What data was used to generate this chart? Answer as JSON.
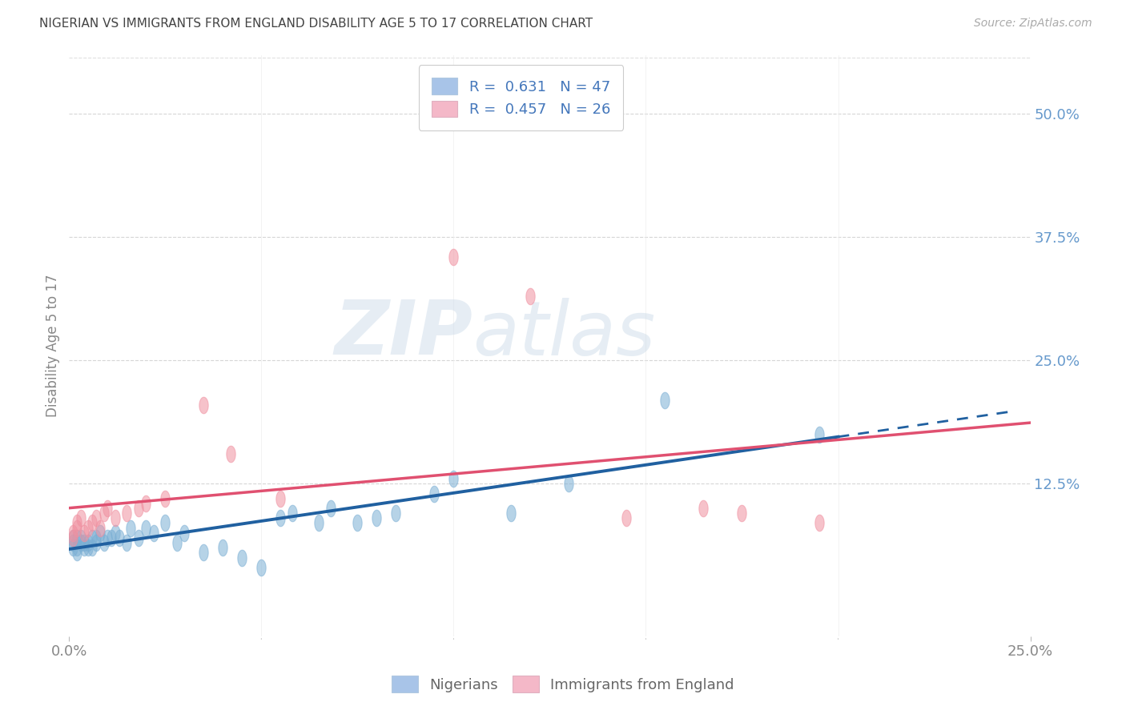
{
  "title": "NIGERIAN VS IMMIGRANTS FROM ENGLAND DISABILITY AGE 5 TO 17 CORRELATION CHART",
  "source": "Source: ZipAtlas.com",
  "ylabel": "Disability Age 5 to 17",
  "watermark_zip": "ZIP",
  "watermark_atlas": "atlas",
  "legend_line1": "R =  0.631   N = 47",
  "legend_line2": "R =  0.457   N = 26",
  "legend_blue_color": "#a8c4e8",
  "legend_pink_color": "#f4b8c8",
  "nigerians_x": [
    0.001,
    0.001,
    0.001,
    0.002,
    0.002,
    0.002,
    0.003,
    0.003,
    0.004,
    0.004,
    0.005,
    0.005,
    0.006,
    0.006,
    0.007,
    0.007,
    0.008,
    0.009,
    0.01,
    0.011,
    0.012,
    0.013,
    0.015,
    0.016,
    0.018,
    0.02,
    0.022,
    0.025,
    0.028,
    0.03,
    0.035,
    0.04,
    0.045,
    0.05,
    0.055,
    0.058,
    0.065,
    0.068,
    0.075,
    0.08,
    0.085,
    0.095,
    0.1,
    0.115,
    0.13,
    0.155,
    0.195
  ],
  "nigerians_y": [
    0.06,
    0.065,
    0.07,
    0.055,
    0.06,
    0.07,
    0.065,
    0.07,
    0.06,
    0.065,
    0.06,
    0.065,
    0.06,
    0.07,
    0.065,
    0.07,
    0.075,
    0.065,
    0.07,
    0.07,
    0.075,
    0.07,
    0.065,
    0.08,
    0.07,
    0.08,
    0.075,
    0.085,
    0.065,
    0.075,
    0.055,
    0.06,
    0.05,
    0.04,
    0.09,
    0.095,
    0.085,
    0.1,
    0.085,
    0.09,
    0.095,
    0.115,
    0.13,
    0.095,
    0.125,
    0.21,
    0.175
  ],
  "england_x": [
    0.001,
    0.001,
    0.002,
    0.002,
    0.003,
    0.004,
    0.005,
    0.006,
    0.007,
    0.008,
    0.009,
    0.01,
    0.012,
    0.015,
    0.018,
    0.02,
    0.025,
    0.035,
    0.042,
    0.055,
    0.1,
    0.12,
    0.145,
    0.165,
    0.175,
    0.195
  ],
  "england_y": [
    0.07,
    0.075,
    0.08,
    0.085,
    0.09,
    0.075,
    0.08,
    0.085,
    0.09,
    0.08,
    0.095,
    0.1,
    0.09,
    0.095,
    0.1,
    0.105,
    0.11,
    0.205,
    0.155,
    0.11,
    0.355,
    0.315,
    0.09,
    0.1,
    0.095,
    0.085
  ],
  "blue_scatter_color": "#7bafd4",
  "pink_scatter_color": "#f090a0",
  "blue_line_color": "#2060a0",
  "pink_line_color": "#e05070",
  "bg_color": "#ffffff",
  "grid_color": "#cccccc",
  "title_color": "#444444",
  "axis_label_color": "#888888",
  "right_label_color": "#6699cc",
  "xlim": [
    0.0,
    0.25
  ],
  "ylim": [
    -0.03,
    0.56
  ],
  "y_ticks": [
    0.125,
    0.25,
    0.375,
    0.5
  ],
  "x_ticks": [
    0.0,
    0.25
  ],
  "blue_line_x_end": 0.2,
  "blue_line_dash_end": 0.245
}
